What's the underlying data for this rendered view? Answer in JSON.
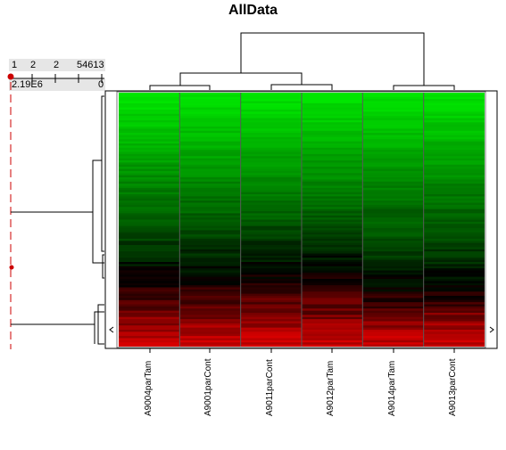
{
  "title": "AllData",
  "scale": {
    "ticks": [
      "1",
      "2",
      "2",
      "54613"
    ],
    "min_label": "2.19E6",
    "max_label": "0"
  },
  "columns": [
    "A9004parTam",
    "A9001parCont",
    "A9011parCont",
    "A9012parTam",
    "A9014parTam",
    "A9013parCont"
  ],
  "colors": {
    "high": "#00e600",
    "mid": "#000000",
    "low": "#cc0000",
    "marker": "#cc0000"
  }
}
